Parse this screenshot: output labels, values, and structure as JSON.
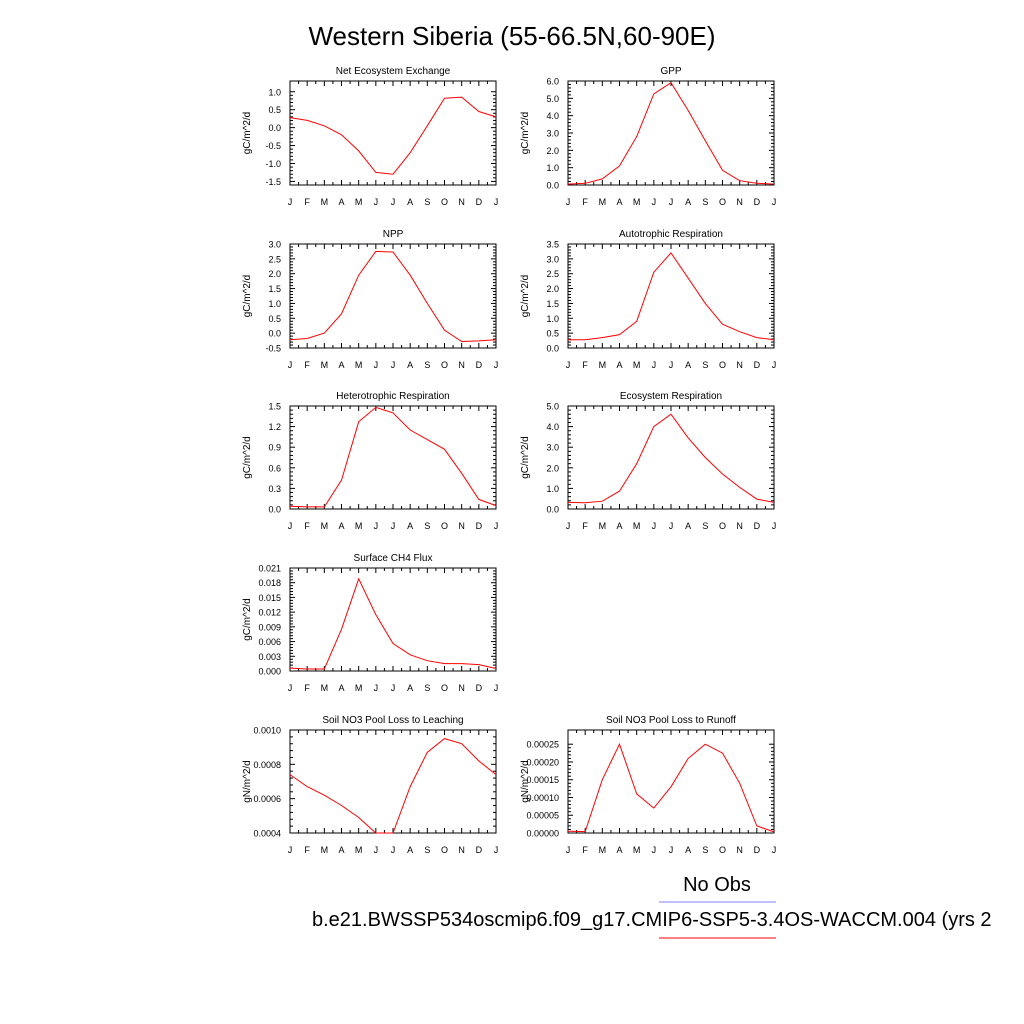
{
  "figure_title": "Western Siberia (55-66.5N,60-90E)",
  "legend": {
    "obs_label": "No Obs",
    "obs_color": "#8080ff",
    "model_label": "b.e21.BWSSP534oscmip6.f09_g17.CMIP6-SSP5-3.4OS-WACCM.004 (yrs 2",
    "model_color": "#ff0000"
  },
  "chart_data": [
    {
      "type": "line",
      "title": "Net Ecosystem Exchange",
      "ylabel": "gC/m^2/d",
      "categories": [
        "J",
        "F",
        "M",
        "A",
        "M",
        "J",
        "J",
        "A",
        "S",
        "O",
        "N",
        "D",
        "J"
      ],
      "values": [
        0.28,
        0.2,
        0.05,
        -0.2,
        -0.65,
        -1.25,
        -1.3,
        -0.7,
        0.05,
        0.82,
        0.85,
        0.45,
        0.3
      ],
      "ylim": [
        -1.6,
        1.3
      ],
      "yticks": [
        -1.5,
        -1.0,
        -0.5,
        0.0,
        0.5,
        1.0
      ],
      "ytick_labels": [
        "-1.5",
        "-1.0",
        "-0.5",
        "0.0",
        "0.5",
        "1.0"
      ]
    },
    {
      "type": "line",
      "title": "GPP",
      "ylabel": "gC/m^2/d",
      "categories": [
        "J",
        "F",
        "M",
        "A",
        "M",
        "J",
        "J",
        "A",
        "S",
        "O",
        "N",
        "D",
        "J"
      ],
      "values": [
        0.05,
        0.1,
        0.35,
        1.1,
        2.8,
        5.25,
        5.9,
        4.3,
        2.55,
        0.85,
        0.25,
        0.1,
        0.05
      ],
      "ylim": [
        0.0,
        6.0
      ],
      "yticks": [
        0.0,
        1.0,
        2.0,
        3.0,
        4.0,
        5.0,
        6.0
      ],
      "ytick_labels": [
        "0.0",
        "1.0",
        "2.0",
        "3.0",
        "4.0",
        "5.0",
        "6.0"
      ]
    },
    {
      "type": "line",
      "title": "NPP",
      "ylabel": "gC/m^2/d",
      "categories": [
        "J",
        "F",
        "M",
        "A",
        "M",
        "J",
        "J",
        "A",
        "S",
        "O",
        "N",
        "D",
        "J"
      ],
      "values": [
        -0.22,
        -0.18,
        0.0,
        0.65,
        1.95,
        2.75,
        2.73,
        1.95,
        1.0,
        0.1,
        -0.28,
        -0.26,
        -0.22
      ],
      "ylim": [
        -0.5,
        3.0
      ],
      "yticks": [
        -0.5,
        0.0,
        0.5,
        1.0,
        1.5,
        2.0,
        2.5,
        3.0
      ],
      "ytick_labels": [
        "-0.5",
        "0.0",
        "0.5",
        "1.0",
        "1.5",
        "2.0",
        "2.5",
        "3.0"
      ]
    },
    {
      "type": "line",
      "title": "Autotrophic Respiration",
      "ylabel": "gC/m^2/d",
      "categories": [
        "J",
        "F",
        "M",
        "A",
        "M",
        "J",
        "J",
        "A",
        "S",
        "O",
        "N",
        "D",
        "J"
      ],
      "values": [
        0.28,
        0.28,
        0.35,
        0.45,
        0.9,
        2.55,
        3.2,
        2.35,
        1.5,
        0.8,
        0.55,
        0.35,
        0.28
      ],
      "ylim": [
        0.0,
        3.5
      ],
      "yticks": [
        0.0,
        0.5,
        1.0,
        1.5,
        2.0,
        2.5,
        3.0,
        3.5
      ],
      "ytick_labels": [
        "0.0",
        "0.5",
        "1.0",
        "1.5",
        "2.0",
        "2.5",
        "3.0",
        "3.5"
      ]
    },
    {
      "type": "line",
      "title": "Heterotrophic Respiration",
      "ylabel": "gC/m^2/d",
      "categories": [
        "J",
        "F",
        "M",
        "A",
        "M",
        "J",
        "J",
        "A",
        "S",
        "O",
        "N",
        "D",
        "J"
      ],
      "values": [
        0.04,
        0.03,
        0.03,
        0.42,
        1.27,
        1.48,
        1.4,
        1.15,
        1.01,
        0.87,
        0.52,
        0.14,
        0.05
      ],
      "ylim": [
        0.0,
        1.5
      ],
      "yticks": [
        0.0,
        0.3,
        0.6,
        0.9,
        1.2,
        1.5
      ],
      "ytick_labels": [
        "0.0",
        "0.3",
        "0.6",
        "0.9",
        "1.2",
        "1.5"
      ]
    },
    {
      "type": "line",
      "title": "Ecosystem Respiration",
      "ylabel": "gC/m^2/d",
      "categories": [
        "J",
        "F",
        "M",
        "A",
        "M",
        "J",
        "J",
        "A",
        "S",
        "O",
        "N",
        "D",
        "J"
      ],
      "values": [
        0.32,
        0.3,
        0.38,
        0.87,
        2.2,
        4.0,
        4.6,
        3.45,
        2.5,
        1.7,
        1.05,
        0.48,
        0.32
      ],
      "ylim": [
        0.0,
        5.0
      ],
      "yticks": [
        0.0,
        1.0,
        2.0,
        3.0,
        4.0,
        5.0
      ],
      "ytick_labels": [
        "0.0",
        "1.0",
        "2.0",
        "3.0",
        "4.0",
        "5.0"
      ]
    },
    {
      "type": "line",
      "title": "Surface CH4 Flux",
      "ylabel": "gC/m^2/d",
      "categories": [
        "J",
        "F",
        "M",
        "A",
        "M",
        "J",
        "J",
        "A",
        "S",
        "O",
        "N",
        "D",
        "J"
      ],
      "values": [
        0.0006,
        0.0004,
        0.0004,
        0.0085,
        0.0188,
        0.0115,
        0.0056,
        0.0033,
        0.0021,
        0.0015,
        0.0015,
        0.0013,
        0.0005
      ],
      "ylim": [
        0.0,
        0.021
      ],
      "yticks": [
        0.0,
        0.003,
        0.006,
        0.009,
        0.012,
        0.015,
        0.018,
        0.021
      ],
      "ytick_labels": [
        "0.000",
        "0.003",
        "0.006",
        "0.009",
        "0.012",
        "0.015",
        "0.018",
        "0.021"
      ]
    },
    {
      "type": "line",
      "title": "Soil NO3 Pool Loss to Leaching",
      "ylabel": "gN/m^2/d",
      "categories": [
        "J",
        "F",
        "M",
        "A",
        "M",
        "J",
        "J",
        "A",
        "S",
        "O",
        "N",
        "D",
        "J"
      ],
      "values": [
        0.00074,
        0.00067,
        0.00062,
        0.00056,
        0.00049,
        0.0004,
        0.0004,
        0.00067,
        0.00087,
        0.00095,
        0.00092,
        0.00082,
        0.00074
      ],
      "ylim": [
        0.0004,
        0.001
      ],
      "yticks": [
        0.0004,
        0.0006,
        0.0008,
        0.001
      ],
      "ytick_labels": [
        "0.0004",
        "0.0006",
        "0.0008",
        "0.0010"
      ]
    },
    {
      "type": "line",
      "title": "Soil NO3 Pool Loss to Runoff",
      "ylabel": "gN/m^2/d",
      "categories": [
        "J",
        "F",
        "M",
        "A",
        "M",
        "J",
        "J",
        "A",
        "S",
        "O",
        "N",
        "D",
        "J"
      ],
      "values": [
        5e-06,
        4e-06,
        0.00015,
        0.00025,
        0.00011,
        7e-05,
        0.00013,
        0.00021,
        0.00025,
        0.000225,
        0.00014,
        2e-05,
        3e-06
      ],
      "ylim": [
        0.0,
        0.00029
      ],
      "yticks": [
        0.0,
        5e-05,
        0.0001,
        0.00015,
        0.0002,
        0.00025
      ],
      "ytick_labels": [
        "0.00000",
        "0.00005",
        "0.00010",
        "0.00015",
        "0.00020",
        "0.00025"
      ]
    }
  ]
}
